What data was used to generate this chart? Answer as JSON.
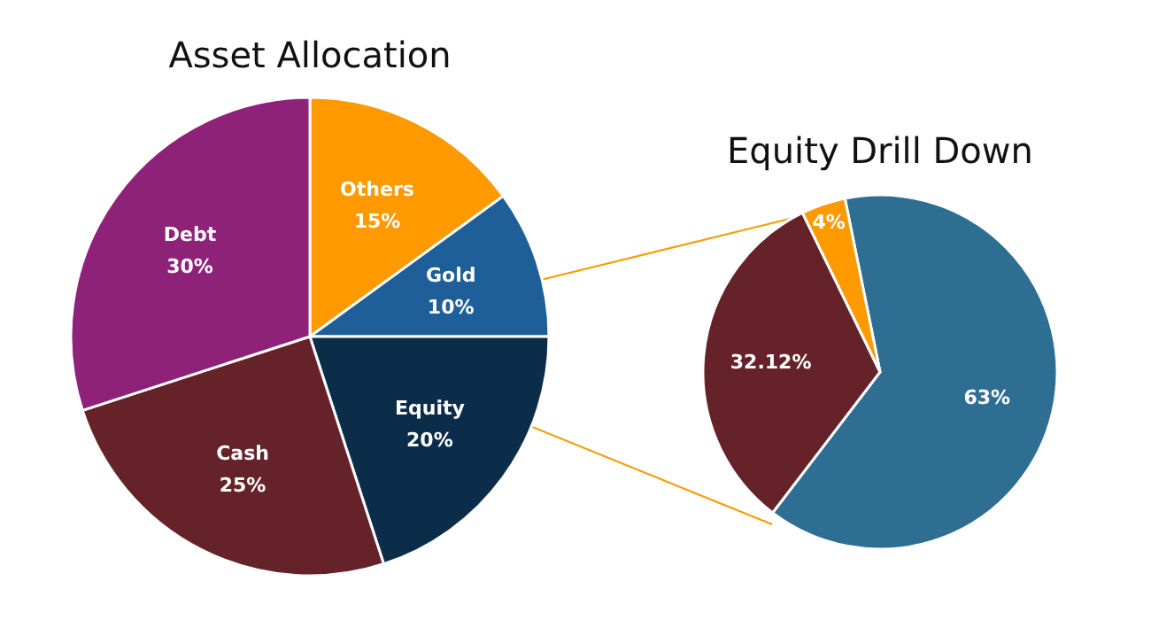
{
  "chart_data": [
    {
      "type": "pie",
      "title": "Asset Allocation",
      "categories": [
        "Others",
        "Gold",
        "Equity",
        "Cash",
        "Debt"
      ],
      "values": [
        15,
        10,
        20,
        25,
        30
      ],
      "value_labels": [
        "15%",
        "10%",
        "20%",
        "25%",
        "30%"
      ],
      "colors": [
        "#ff9900",
        "#1f5f99",
        "#0b2d4a",
        "#662229",
        "#8e2278"
      ]
    },
    {
      "type": "pie",
      "title": "Equity Drill Down",
      "categories": [
        null,
        null,
        null
      ],
      "values": [
        63,
        32.12,
        4
      ],
      "value_labels": [
        "63%",
        "32.12%",
        "4%"
      ],
      "colors": [
        "#2e6e92",
        "#662229",
        "#ff9900"
      ]
    }
  ]
}
